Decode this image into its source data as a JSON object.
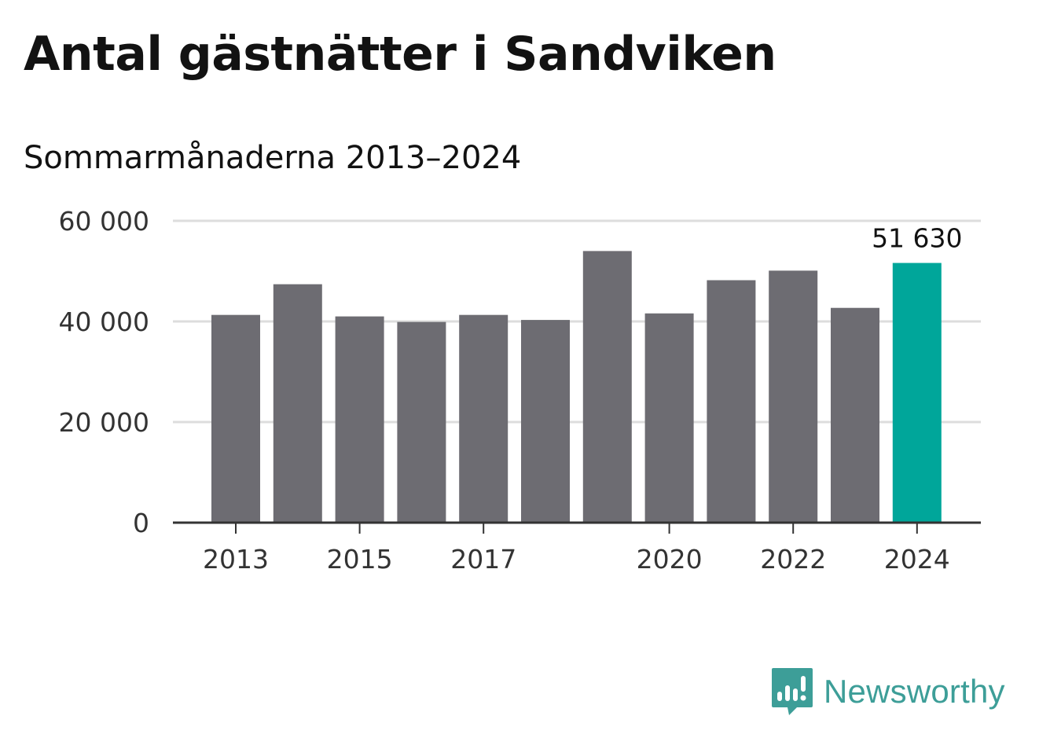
{
  "header": {
    "title": "Antal gästnätter i Sandviken",
    "subtitle": "Sommarmånaderna 2013–2024"
  },
  "chart_data": {
    "type": "bar",
    "categories": [
      "2013",
      "2014",
      "2015",
      "2016",
      "2017",
      "2018",
      "2019",
      "2020",
      "2021",
      "2022",
      "2023",
      "2024"
    ],
    "values": [
      41300,
      47400,
      41000,
      39900,
      41300,
      40300,
      54000,
      41600,
      48200,
      50100,
      42700,
      51630
    ],
    "x_tick_labels": [
      "2013",
      "2015",
      "2017",
      "2020",
      "2022",
      "2024"
    ],
    "y_tick_labels": [
      "0",
      "20 000",
      "40 000",
      "60 000"
    ],
    "y_ticks": [
      0,
      20000,
      40000,
      60000
    ],
    "ylim": [
      0,
      60000
    ],
    "grid": true,
    "highlight": {
      "category": "2024",
      "label": "51 630"
    },
    "colors": {
      "bar": "#6d6c72",
      "highlight": "#00a69a",
      "grid": "#dddddd",
      "axis": "#333333"
    }
  },
  "logo": {
    "name": "Newsworthy",
    "icon": "newsworthy-logo-icon",
    "color": "#3d9e98"
  }
}
